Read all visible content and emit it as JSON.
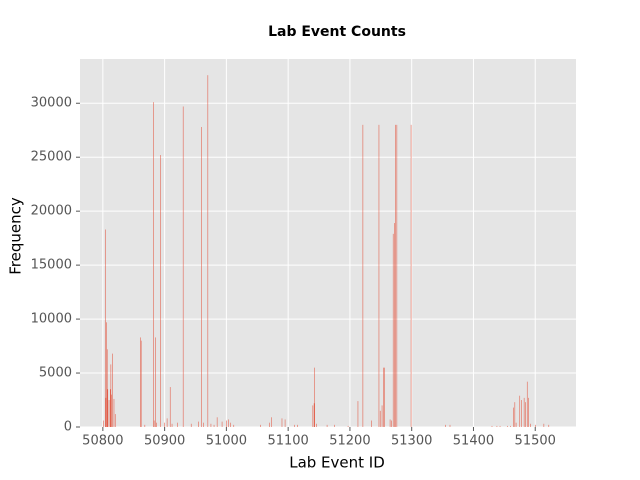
{
  "chart_data": {
    "type": "bar",
    "title": "Lab Event Counts",
    "xlabel": "Lab Event ID",
    "ylabel": "Frequency",
    "color": "#E24A33",
    "grid": true,
    "x": [
      50801,
      50804,
      50805,
      50806,
      50807,
      50808,
      50810,
      50812,
      50813,
      50814,
      50816,
      50818,
      50820,
      50861,
      50862,
      50868,
      50882,
      50883,
      50885,
      50887,
      50893,
      50900,
      50904,
      50909,
      50912,
      50921,
      50930,
      50943,
      50955,
      50960,
      50963,
      50970,
      50975,
      50980,
      50985,
      50993,
      51000,
      51003,
      51007,
      51012,
      51055,
      51070,
      51073,
      51090,
      51095,
      51110,
      51115,
      51140,
      51142,
      51143,
      51146,
      51163,
      51175,
      51197,
      51213,
      51221,
      51235,
      51247,
      51249,
      51252,
      51254,
      51256,
      51265,
      51267,
      51270,
      51272,
      51274,
      51276,
      51299,
      51355,
      51362,
      51430,
      51438,
      51443,
      51455,
      51460,
      51465,
      51467,
      51469,
      51475,
      51478,
      51482,
      51484,
      51487,
      51489,
      51492,
      51500,
      51514,
      51522
    ],
    "values": [
      600,
      18300,
      2700,
      9700,
      7200,
      3500,
      2500,
      3500,
      5800,
      3000,
      6800,
      2600,
      1200,
      8300,
      8000,
      200,
      30100,
      600,
      8300,
      400,
      25200,
      400,
      800,
      3700,
      300,
      400,
      29700,
      300,
      500,
      27800,
      400,
      32600,
      300,
      200,
      900,
      500,
      600,
      700,
      400,
      200,
      200,
      400,
      900,
      800,
      700,
      200,
      200,
      2000,
      2200,
      5500,
      300,
      200,
      200,
      100,
      2400,
      28000,
      600,
      28000,
      1500,
      2000,
      5500,
      5500,
      700,
      600,
      17900,
      18900,
      28000,
      28000,
      28000,
      200,
      200,
      100,
      100,
      100,
      100,
      100,
      1800,
      2300,
      400,
      2900,
      2500,
      2700,
      2300,
      4200,
      2700,
      300,
      200,
      300,
      200
    ],
    "xlim": [
      50763,
      51566
    ],
    "xticks": [
      50800,
      50900,
      51000,
      51100,
      51200,
      51300,
      51400,
      51500
    ],
    "ylim": [
      0,
      34100
    ],
    "yticks": [
      0,
      5000,
      10000,
      15000,
      20000,
      25000,
      30000
    ]
  }
}
